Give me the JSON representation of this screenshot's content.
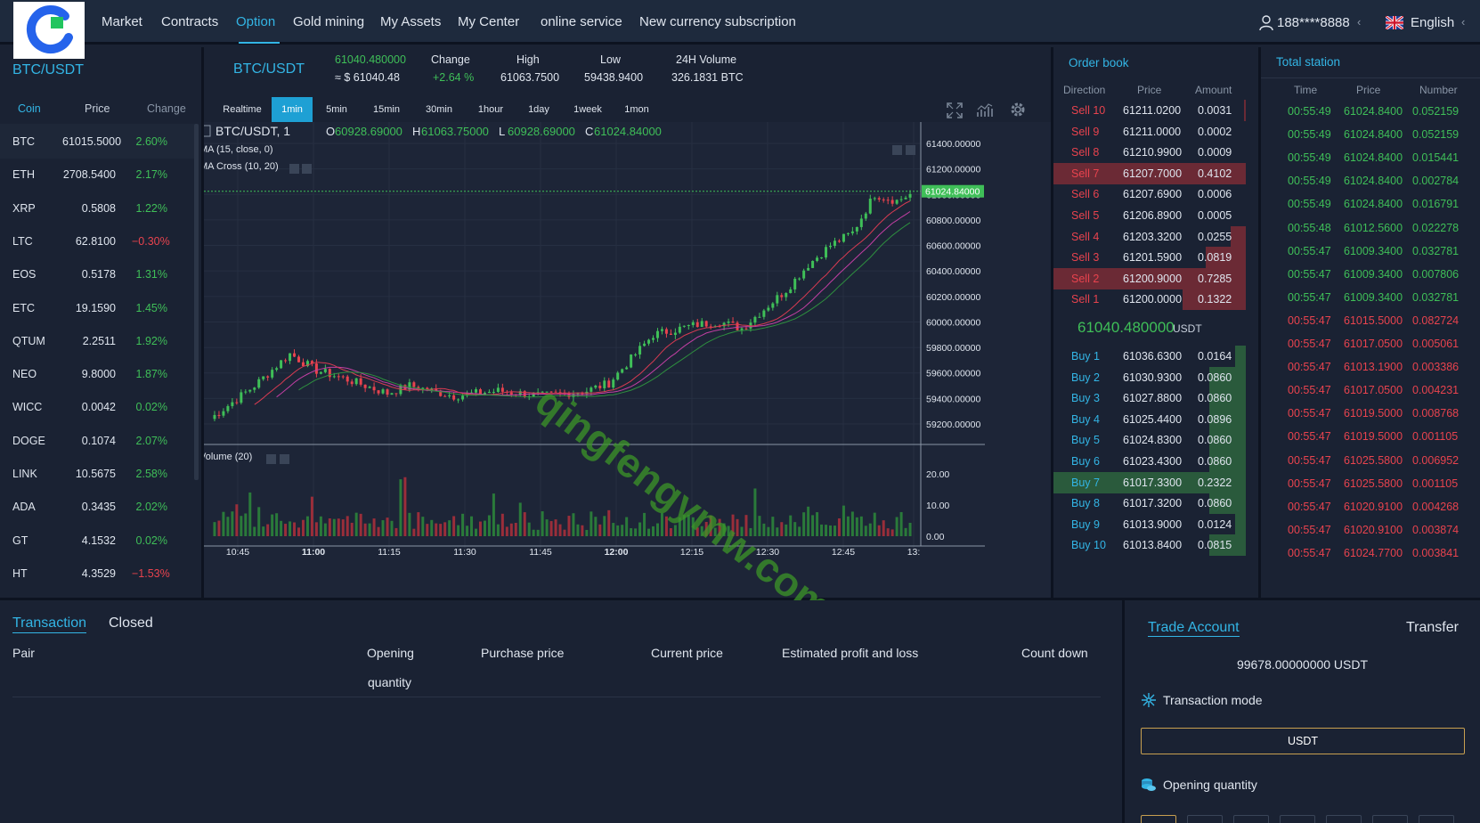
{
  "header": {
    "nav": [
      "Market",
      "Contracts",
      "Option",
      "Gold mining",
      "My Assets",
      "My Center",
      "online service",
      "New currency subscription"
    ],
    "active": "Option",
    "user": "188****8888",
    "language": "English",
    "user_icon": "user-icon",
    "flag_icon": "uk-flag-icon"
  },
  "market_list": {
    "pair": "BTC/USDT",
    "headers": {
      "coin": "Coin",
      "price": "Price",
      "change": "Change"
    },
    "rows": [
      {
        "coin": "BTC",
        "price": "61015.5000",
        "change": "2.60%",
        "dir": "up"
      },
      {
        "coin": "ETH",
        "price": "2708.5400",
        "change": "2.17%",
        "dir": "up"
      },
      {
        "coin": "XRP",
        "price": "0.5808",
        "change": "1.22%",
        "dir": "up"
      },
      {
        "coin": "LTC",
        "price": "62.8100",
        "change": "−0.30%",
        "dir": "dn"
      },
      {
        "coin": "EOS",
        "price": "0.5178",
        "change": "1.31%",
        "dir": "up"
      },
      {
        "coin": "ETC",
        "price": "19.1590",
        "change": "1.45%",
        "dir": "up"
      },
      {
        "coin": "QTUM",
        "price": "2.2511",
        "change": "1.92%",
        "dir": "up"
      },
      {
        "coin": "NEO",
        "price": "9.8000",
        "change": "1.87%",
        "dir": "up"
      },
      {
        "coin": "WICC",
        "price": "0.0042",
        "change": "0.02%",
        "dir": "up"
      },
      {
        "coin": "DOGE",
        "price": "0.1074",
        "change": "2.07%",
        "dir": "up"
      },
      {
        "coin": "LINK",
        "price": "10.5675",
        "change": "2.58%",
        "dir": "up"
      },
      {
        "coin": "ADA",
        "price": "0.3435",
        "change": "2.02%",
        "dir": "up"
      },
      {
        "coin": "GT",
        "price": "4.1532",
        "change": "0.02%",
        "dir": "up"
      },
      {
        "coin": "HT",
        "price": "4.3529",
        "change": "−1.53%",
        "dir": "dn"
      }
    ]
  },
  "ticker": {
    "pair": "BTC/USDT",
    "last": "61040.480000",
    "last_usd": "≈ $ 61040.48",
    "change_label": "Change",
    "change": "+2.64 %",
    "high_label": "High",
    "high": "61063.7500",
    "low_label": "Low",
    "low": "59438.9400",
    "vol_label": "24H Volume",
    "vol": "326.1831 BTC"
  },
  "timeframes": [
    "Realtime",
    "1min",
    "5min",
    "15min",
    "30min",
    "1hour",
    "1day",
    "1week",
    "1mon"
  ],
  "active_timeframe": "1min",
  "chart_icons": [
    "fullscreen-icon",
    "indicator-icon",
    "settings-gear-icon"
  ],
  "chart_data": {
    "type": "candlestick",
    "legend": {
      "symbol": "BTC/USDT, 1",
      "o_label": "O",
      "o": "60928.69000",
      "h_label": "H",
      "h": "61063.75000",
      "l_label": "L",
      "l": "60928.69000",
      "c_label": "C",
      "c": "61024.84000"
    },
    "indicators": [
      "MA (15, close, 0)",
      "MA Cross (10, 20)"
    ],
    "volume_label": "Volume (20)",
    "price_ticks": [
      "61400.00000",
      "61200.00000",
      "61000.00000",
      "60800.00000",
      "60600.00000",
      "60400.00000",
      "60200.00000",
      "60000.00000",
      "59800.00000",
      "59600.00000",
      "59400.00000",
      "59200.00000"
    ],
    "price_tick_values": [
      61400,
      61200,
      61000,
      60800,
      60600,
      60400,
      60200,
      60000,
      59800,
      59600,
      59400,
      59200
    ],
    "current_price": "61024.84000",
    "current_price_value": 61024.84,
    "volume_ticks": [
      "20.00",
      "10.00",
      "0.00"
    ],
    "volume_tick_values": [
      20,
      10,
      0
    ],
    "time_ticks": [
      "10:45",
      "11:00",
      "11:15",
      "11:30",
      "11:45",
      "12:00",
      "12:15",
      "12:30",
      "12:45",
      "13:"
    ],
    "bold_time_ticks": [
      "11:00",
      "12:00"
    ],
    "close_anchors": [
      [
        0,
        59240
      ],
      [
        10,
        59500
      ],
      [
        18,
        59750
      ],
      [
        24,
        59620
      ],
      [
        30,
        59560
      ],
      [
        40,
        59440
      ],
      [
        45,
        59500
      ],
      [
        55,
        59420
      ],
      [
        65,
        59460
      ],
      [
        75,
        59420
      ],
      [
        85,
        59460
      ],
      [
        90,
        59520
      ],
      [
        100,
        59900
      ],
      [
        110,
        59980
      ],
      [
        115,
        60000
      ],
      [
        120,
        59950
      ],
      [
        130,
        60250
      ],
      [
        135,
        60450
      ],
      [
        140,
        60600
      ],
      [
        145,
        60700
      ],
      [
        150,
        61000
      ],
      [
        155,
        60950
      ],
      [
        158,
        61000
      ]
    ],
    "volume_range": [
      0,
      24
    ]
  },
  "orderbook": {
    "title": "Order book",
    "headers": {
      "direction": "Direction",
      "price": "Price",
      "amount": "Amount"
    },
    "asks": [
      {
        "dir": "Sell 10",
        "price": "61211.0200",
        "amount": "0.0031",
        "depth": 0.01,
        "hl": false
      },
      {
        "dir": "Sell 9",
        "price": "61211.0000",
        "amount": "0.0002",
        "depth": 0,
        "hl": false
      },
      {
        "dir": "Sell 8",
        "price": "61210.9900",
        "amount": "0.0009",
        "depth": 0,
        "hl": false
      },
      {
        "dir": "Sell 7",
        "price": "61207.7000",
        "amount": "0.4102",
        "depth": 1,
        "hl": true
      },
      {
        "dir": "Sell 6",
        "price": "61207.6900",
        "amount": "0.0006",
        "depth": 0,
        "hl": false
      },
      {
        "dir": "Sell 5",
        "price": "61206.8900",
        "amount": "0.0005",
        "depth": 0,
        "hl": false
      },
      {
        "dir": "Sell 4",
        "price": "61203.3200",
        "amount": "0.0255",
        "depth": 0.11,
        "hl": false
      },
      {
        "dir": "Sell 3",
        "price": "61201.5900",
        "amount": "0.0819",
        "depth": 0.3,
        "hl": false
      },
      {
        "dir": "Sell 2",
        "price": "61200.9000",
        "amount": "0.7285",
        "depth": 1,
        "hl": true
      },
      {
        "dir": "Sell 1",
        "price": "61200.0000",
        "amount": "0.1322",
        "depth": 0.47,
        "hl": false
      }
    ],
    "mid_price": "61040.480000",
    "mid_unit": "USDT",
    "bids": [
      {
        "dir": "Buy 1",
        "price": "61036.6300",
        "amount": "0.0164",
        "depth": 0.08,
        "hl": false
      },
      {
        "dir": "Buy 2",
        "price": "61030.9300",
        "amount": "0.0860",
        "depth": 0.27,
        "hl": false
      },
      {
        "dir": "Buy 3",
        "price": "61027.8800",
        "amount": "0.0860",
        "depth": 0.27,
        "hl": false
      },
      {
        "dir": "Buy 4",
        "price": "61025.4400",
        "amount": "0.0896",
        "depth": 0.27,
        "hl": false
      },
      {
        "dir": "Buy 5",
        "price": "61024.8300",
        "amount": "0.0860",
        "depth": 0.27,
        "hl": false
      },
      {
        "dir": "Buy 6",
        "price": "61023.4300",
        "amount": "0.0860",
        "depth": 0.27,
        "hl": false
      },
      {
        "dir": "Buy 7",
        "price": "61017.3300",
        "amount": "0.2322",
        "depth": 1,
        "hl": true
      },
      {
        "dir": "Buy 8",
        "price": "61017.3200",
        "amount": "0.0860",
        "depth": 0.27,
        "hl": false
      },
      {
        "dir": "Buy 9",
        "price": "61013.9000",
        "amount": "0.0124",
        "depth": 0.08,
        "hl": false
      },
      {
        "dir": "Buy 10",
        "price": "61013.8400",
        "amount": "0.0815",
        "depth": 0.27,
        "hl": false
      }
    ]
  },
  "trades": {
    "title": "Total station",
    "headers": {
      "time": "Time",
      "price": "Price",
      "number": "Number"
    },
    "rows": [
      {
        "time": "00:55:49",
        "price": "61024.8400",
        "number": "0.052159",
        "dir": "up"
      },
      {
        "time": "00:55:49",
        "price": "61024.8400",
        "number": "0.052159",
        "dir": "up"
      },
      {
        "time": "00:55:49",
        "price": "61024.8400",
        "number": "0.015441",
        "dir": "up"
      },
      {
        "time": "00:55:49",
        "price": "61024.8400",
        "number": "0.002784",
        "dir": "up"
      },
      {
        "time": "00:55:49",
        "price": "61024.8400",
        "number": "0.016791",
        "dir": "up"
      },
      {
        "time": "00:55:48",
        "price": "61012.5600",
        "number": "0.022278",
        "dir": "up"
      },
      {
        "time": "00:55:47",
        "price": "61009.3400",
        "number": "0.032781",
        "dir": "up"
      },
      {
        "time": "00:55:47",
        "price": "61009.3400",
        "number": "0.007806",
        "dir": "up"
      },
      {
        "time": "00:55:47",
        "price": "61009.3400",
        "number": "0.032781",
        "dir": "up"
      },
      {
        "time": "00:55:47",
        "price": "61015.5000",
        "number": "0.082724",
        "dir": "dn"
      },
      {
        "time": "00:55:47",
        "price": "61017.0500",
        "number": "0.005061",
        "dir": "dn"
      },
      {
        "time": "00:55:47",
        "price": "61013.1900",
        "number": "0.003386",
        "dir": "dn"
      },
      {
        "time": "00:55:47",
        "price": "61017.0500",
        "number": "0.004231",
        "dir": "dn"
      },
      {
        "time": "00:55:47",
        "price": "61019.5000",
        "number": "0.008768",
        "dir": "dn"
      },
      {
        "time": "00:55:47",
        "price": "61019.5000",
        "number": "0.001105",
        "dir": "dn"
      },
      {
        "time": "00:55:47",
        "price": "61025.5800",
        "number": "0.006952",
        "dir": "dn"
      },
      {
        "time": "00:55:47",
        "price": "61025.5800",
        "number": "0.001105",
        "dir": "dn"
      },
      {
        "time": "00:55:47",
        "price": "61020.9100",
        "number": "0.004268",
        "dir": "dn"
      },
      {
        "time": "00:55:47",
        "price": "61020.9100",
        "number": "0.003874",
        "dir": "dn"
      },
      {
        "time": "00:55:47",
        "price": "61024.7700",
        "number": "0.003841",
        "dir": "dn"
      }
    ]
  },
  "positions": {
    "tabs": [
      "Transaction",
      "Closed"
    ],
    "active_tab": "Transaction",
    "columns": {
      "pair": "Pair",
      "qty1": "Opening",
      "qty2": "quantity",
      "purchase": "Purchase price",
      "current": "Current price",
      "pnl": "Estimated profit and loss",
      "countdown": "Count down"
    }
  },
  "account": {
    "tab": "Trade Account",
    "transfer": "Transfer",
    "balance": "99678.00000000 USDT",
    "mode_label": "Transaction mode",
    "mode_value": "USDT",
    "qty_label": "Opening quantity",
    "mode_icon": "snowflake-icon",
    "qty_icon": "coins-icon"
  },
  "watermark": "qingfengymw.com",
  "colors": {
    "up": "#3fbf58",
    "down": "#e8434e",
    "accent": "#33b5e5",
    "bg": "#1a2233"
  }
}
